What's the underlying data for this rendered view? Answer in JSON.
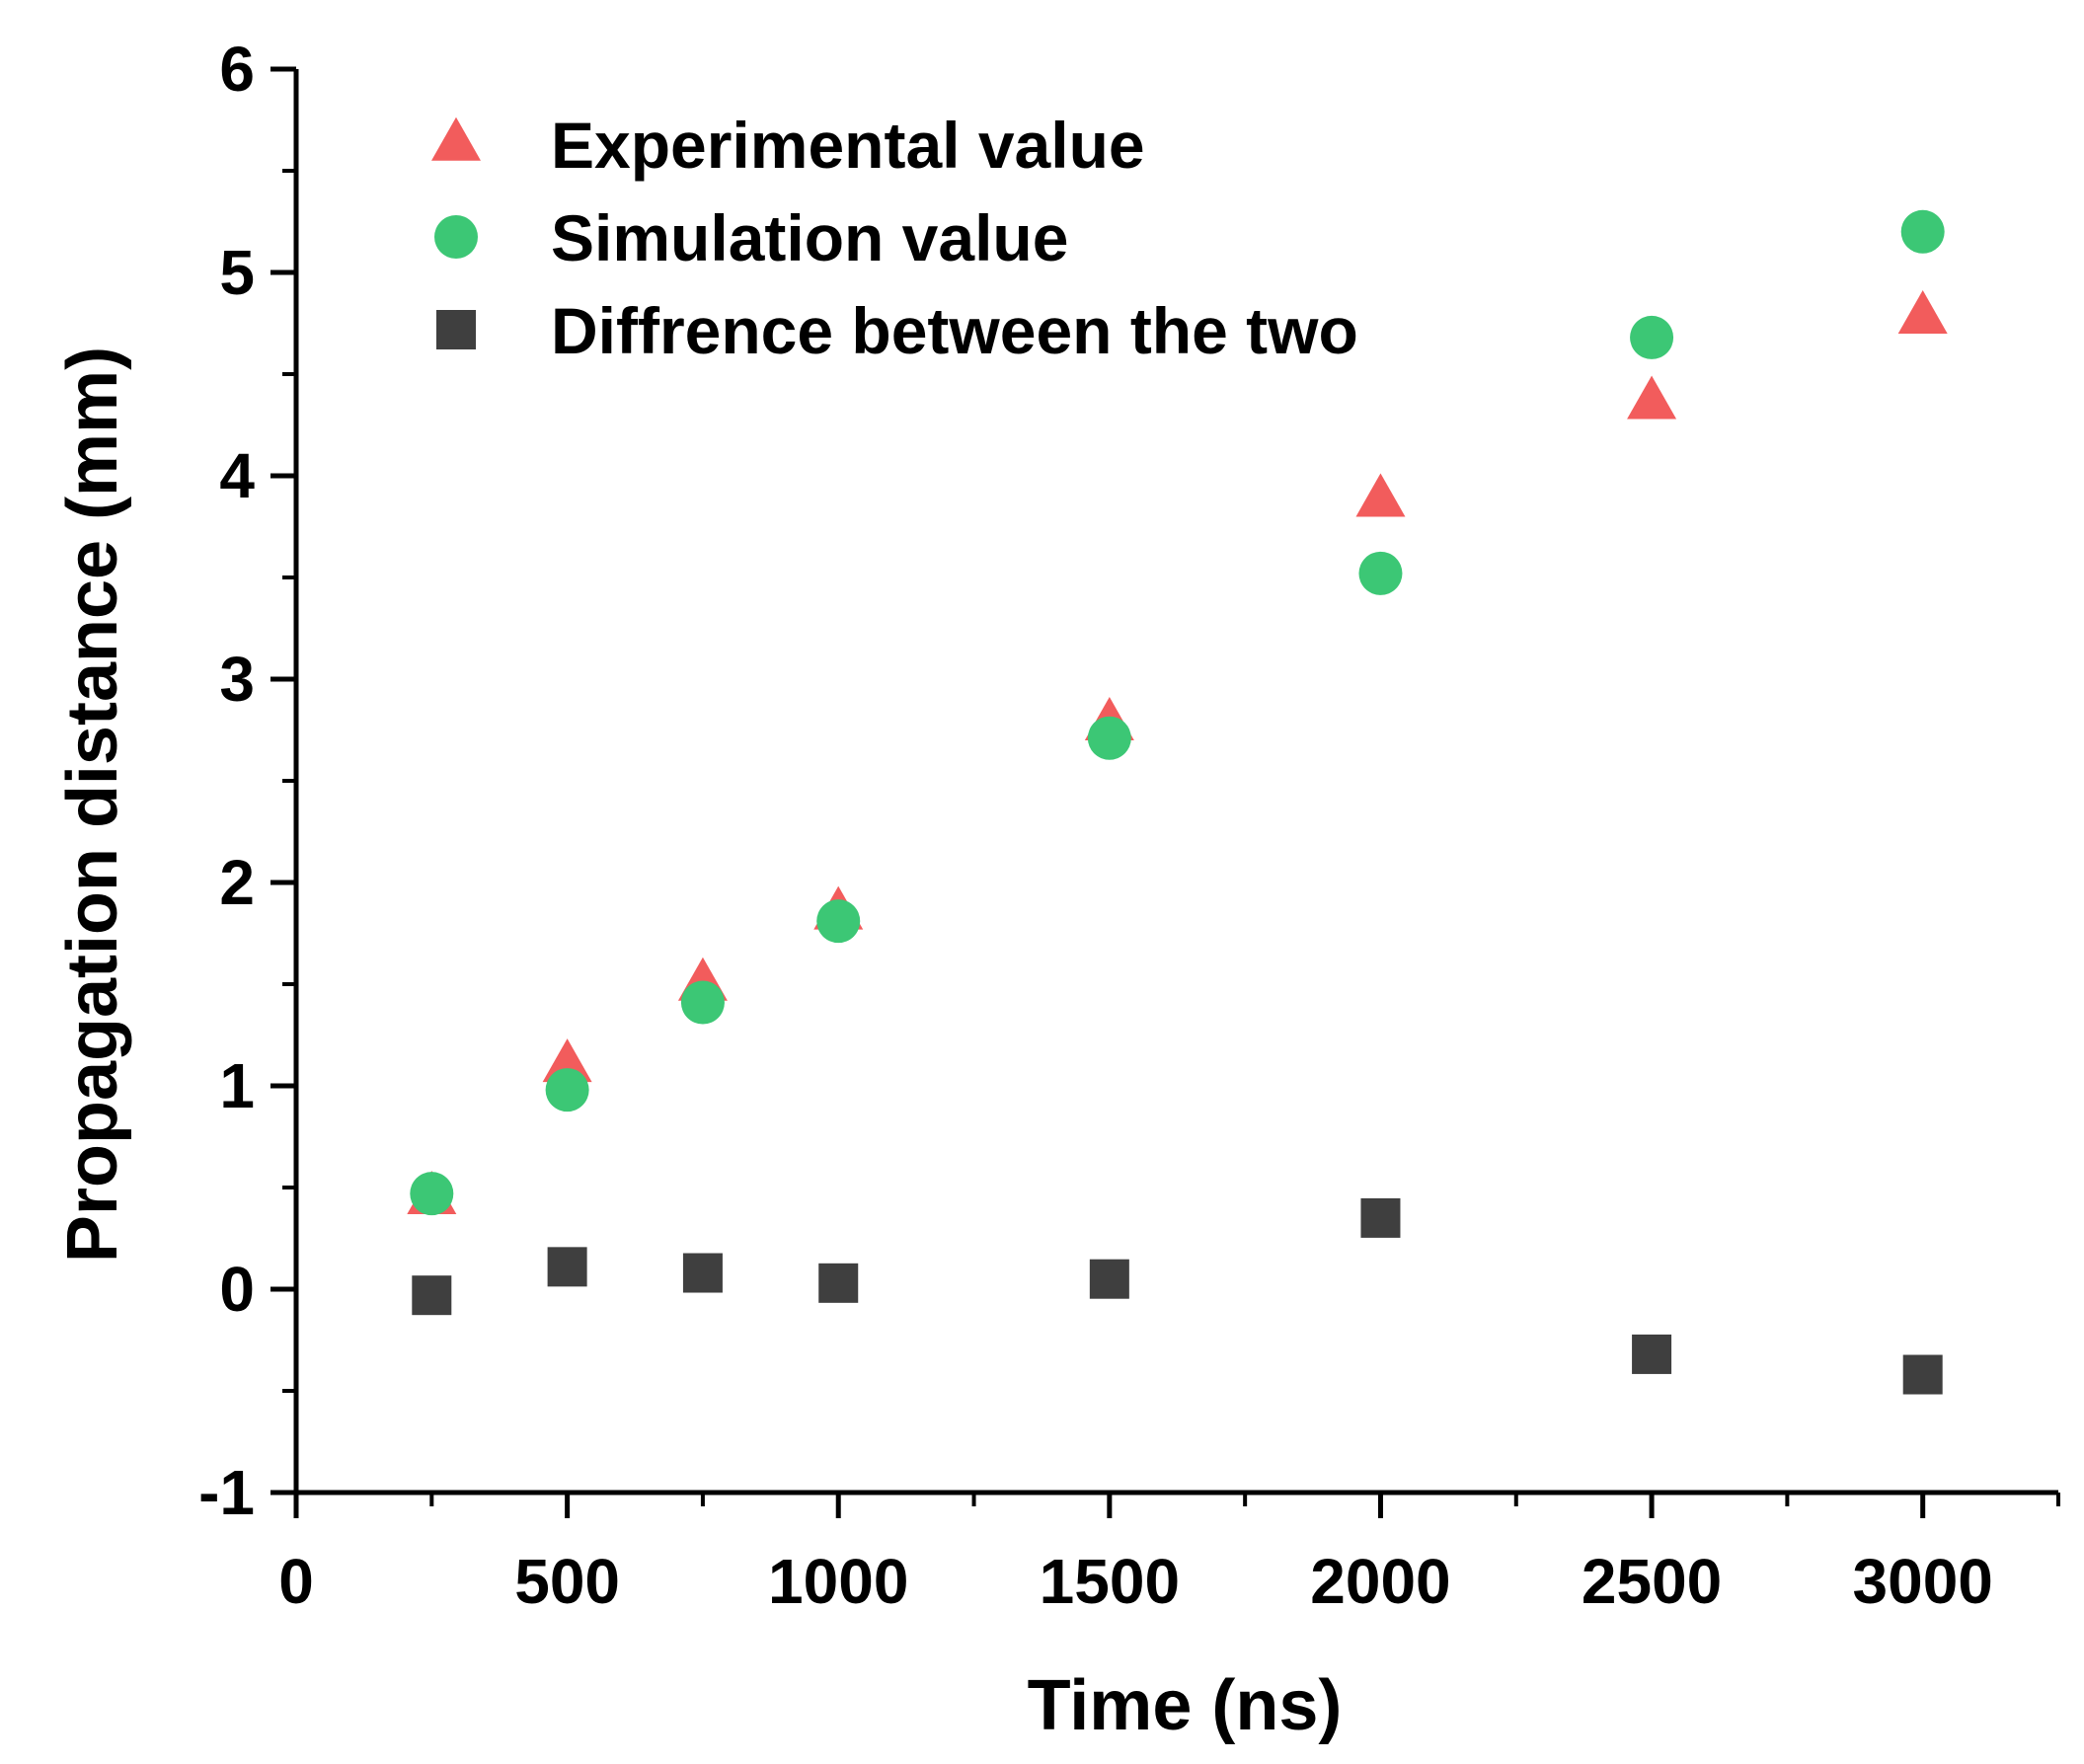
{
  "chart_data": {
    "type": "scatter",
    "title": "",
    "xlabel": "Time (ns)",
    "ylabel": "Propagation distance (mm)",
    "xlim": [
      0,
      3250
    ],
    "ylim": [
      -1,
      6
    ],
    "x_ticks": [
      0,
      500,
      1000,
      1500,
      2000,
      2500,
      3000
    ],
    "x_tick_labels": [
      "0",
      "500",
      "1000",
      "1500",
      "2000",
      "2500",
      "3000"
    ],
    "y_ticks": [
      -1,
      0,
      1,
      2,
      3,
      4,
      5,
      6
    ],
    "y_tick_labels": [
      "-1",
      "0",
      "1",
      "2",
      "3",
      "4",
      "5",
      "6"
    ],
    "grid": false,
    "legend_position": "top-left",
    "series": [
      {
        "name": "Experimental value",
        "marker": "triangle",
        "color": "#f25c5c",
        "points": [
          {
            "x": 250,
            "y": 0.45
          },
          {
            "x": 500,
            "y": 1.1
          },
          {
            "x": 750,
            "y": 1.5
          },
          {
            "x": 1000,
            "y": 1.85
          },
          {
            "x": 1500,
            "y": 2.78
          },
          {
            "x": 2000,
            "y": 3.88
          },
          {
            "x": 2500,
            "y": 4.36
          },
          {
            "x": 3000,
            "y": 4.78
          }
        ]
      },
      {
        "name": "Simulation value",
        "marker": "circle",
        "color": "#3cc775",
        "points": [
          {
            "x": 250,
            "y": 0.47
          },
          {
            "x": 500,
            "y": 0.98
          },
          {
            "x": 750,
            "y": 1.41
          },
          {
            "x": 1000,
            "y": 1.81
          },
          {
            "x": 1500,
            "y": 2.71
          },
          {
            "x": 2000,
            "y": 3.52
          },
          {
            "x": 2500,
            "y": 4.68
          },
          {
            "x": 3000,
            "y": 5.2
          }
        ]
      },
      {
        "name": "Diffrence between the two",
        "marker": "square",
        "color": "#3f3f3f",
        "points": [
          {
            "x": 250,
            "y": -0.03
          },
          {
            "x": 500,
            "y": 0.11
          },
          {
            "x": 750,
            "y": 0.08
          },
          {
            "x": 1000,
            "y": 0.03
          },
          {
            "x": 1500,
            "y": 0.05
          },
          {
            "x": 2000,
            "y": 0.35
          },
          {
            "x": 2500,
            "y": -0.32
          },
          {
            "x": 3000,
            "y": -0.42
          }
        ]
      }
    ]
  }
}
